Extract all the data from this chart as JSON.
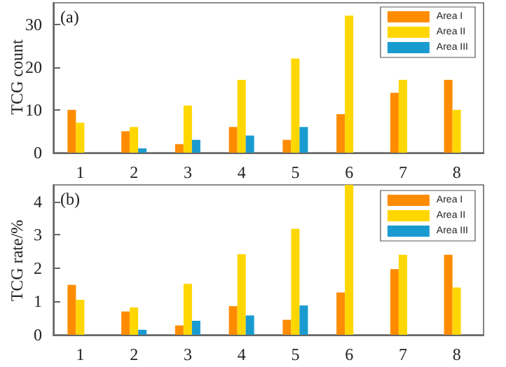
{
  "chart_data": [
    {
      "type": "bar",
      "categories": [
        "1",
        "2",
        "3",
        "4",
        "5",
        "6",
        "7",
        "8"
      ],
      "ylabel": "TCG count",
      "ylim": [
        0,
        35
      ],
      "yticks": [
        0,
        10,
        20,
        30
      ],
      "legend": "top right",
      "grid": false,
      "annotations": [
        "(a)"
      ],
      "series": [
        {
          "name": "Area I",
          "color": "#ff8c00",
          "values": [
            10,
            5,
            2,
            6,
            3,
            9,
            14,
            17
          ]
        },
        {
          "name": "Area II",
          "color": "#ffd700",
          "values": [
            7,
            6,
            11,
            17,
            22,
            32,
            17,
            10
          ]
        },
        {
          "name": "Area III",
          "color": "#1a9bd0",
          "values": [
            0,
            1,
            3,
            4,
            6,
            0,
            0,
            0
          ]
        }
      ]
    },
    {
      "type": "bar",
      "categories": [
        "1",
        "2",
        "3",
        "4",
        "5",
        "6",
        "7",
        "8"
      ],
      "ylabel": "TCG rate/%",
      "ylim": [
        0,
        4.5
      ],
      "yticks": [
        0,
        1,
        2,
        3,
        4
      ],
      "legend": "top right",
      "grid": false,
      "annotations": [
        "(b)"
      ],
      "series": [
        {
          "name": "Area I",
          "color": "#ff8c00",
          "values": [
            1.5,
            0.7,
            0.28,
            0.86,
            0.45,
            1.27,
            1.97,
            2.4
          ]
        },
        {
          "name": "Area II",
          "color": "#ffd700",
          "values": [
            1.05,
            0.82,
            1.53,
            2.42,
            3.18,
            4.5,
            2.4,
            1.42
          ]
        },
        {
          "name": "Area III",
          "color": "#1a9bd0",
          "values": [
            0,
            0.15,
            0.42,
            0.58,
            0.88,
            0,
            0,
            0
          ]
        }
      ]
    }
  ]
}
